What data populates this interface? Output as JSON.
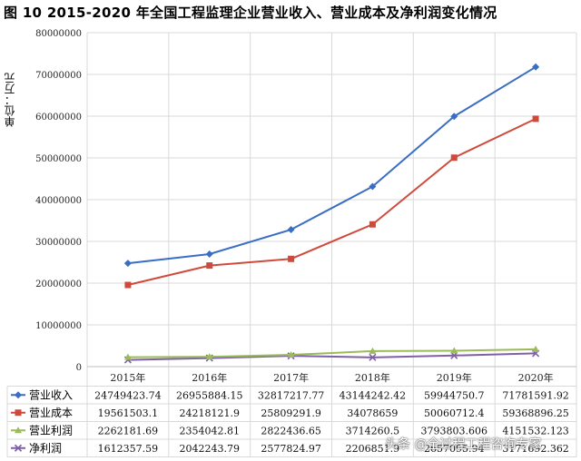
{
  "header": {
    "title": "图 10   2015-2020 年全国工程监理企业营业收入、营业成本及净利润变化情况"
  },
  "chart_data": {
    "type": "line",
    "ylabel": "单位：万元",
    "ylim": [
      0,
      80000000
    ],
    "yticks": [
      "0",
      "10000000",
      "20000000",
      "30000000",
      "40000000",
      "50000000",
      "60000000",
      "70000000",
      "80000000"
    ],
    "categories": [
      "2015年",
      "2016年",
      "2017年",
      "2018年",
      "2019年",
      "2020年"
    ],
    "grid": true,
    "legend": "data-table",
    "series": [
      {
        "name": "营业收入",
        "color": "#3A6DC4",
        "marker": "diamond",
        "values": [
          24749423.74,
          26955884.15,
          32817217.77,
          43144242.42,
          59944750.7,
          71781591.92
        ],
        "labels": [
          "24749423.74",
          "26955884.15",
          "32817217.77",
          "43144242.42",
          "59944750.7",
          "71781591.92"
        ]
      },
      {
        "name": "营业成本",
        "color": "#D04A3C",
        "marker": "square",
        "values": [
          19561503.1,
          24218121.9,
          25809291.9,
          34078659,
          50060712.4,
          59368896.25
        ],
        "labels": [
          "19561503.1",
          "24218121.9",
          "25809291.9",
          "34078659",
          "50060712.4",
          "59368896.25"
        ]
      },
      {
        "name": "营业利润",
        "color": "#9BBB59",
        "marker": "triangle",
        "values": [
          2262181.69,
          2354042.81,
          2822436.65,
          3714260.5,
          3793803.606,
          4151532.123
        ],
        "labels": [
          "2262181.69",
          "2354042.81",
          "2822436.65",
          "3714260.5",
          "3793803.606",
          "4151532.123"
        ]
      },
      {
        "name": "净利润",
        "color": "#7F5FA8",
        "marker": "x",
        "values": [
          1612357.59,
          2042243.79,
          2577824.97,
          2206851.9,
          2657095.94,
          3171692.362
        ],
        "labels": [
          "1612357.59",
          "2042243.79",
          "2577824.97",
          "2206851.9",
          "2657095.94",
          "3171692.362"
        ]
      }
    ]
  },
  "watermark": {
    "text": "头条 @全过程工程咨询专家"
  }
}
